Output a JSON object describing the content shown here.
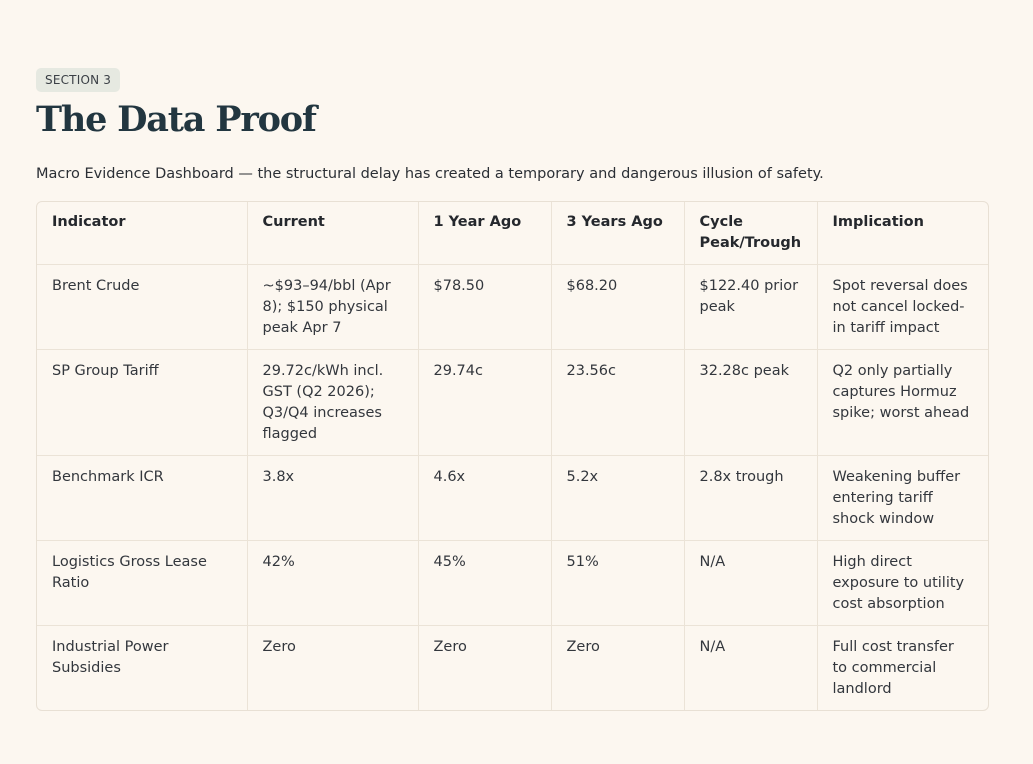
{
  "section": {
    "badge_label": "SECTION 3"
  },
  "header": {
    "title": "The Data Proof",
    "subtitle": "Macro Evidence Dashboard — the structural delay has created a temporary and dangerous illusion of safety."
  },
  "table": {
    "columns": [
      "Indicator",
      "Current",
      "1 Year Ago",
      "3 Years Ago",
      "Cycle Peak/Trough",
      "Implication"
    ],
    "rows": [
      [
        "Brent Crude",
        "~$93–94/bbl (Apr 8); $150 physical peak Apr 7",
        "$78.50",
        "$68.20",
        "$122.40 prior peak",
        "Spot reversal does not cancel locked-in tariff impact"
      ],
      [
        "SP Group Tariff",
        "29.72c/kWh incl. GST (Q2 2026); Q3/Q4 increases flagged",
        "29.74c",
        "23.56c",
        "32.28c peak",
        "Q2 only partially captures Hormuz spike; worst ahead"
      ],
      [
        "Benchmark ICR",
        "3.8x",
        "4.6x",
        "5.2x",
        "2.8x trough",
        "Weakening buffer entering tariff shock window"
      ],
      [
        "Logistics Gross Lease Ratio",
        "42%",
        "45%",
        "51%",
        "N/A",
        "High direct exposure to utility cost absorption"
      ],
      [
        "Industrial Power Subsidies",
        "Zero",
        "Zero",
        "Zero",
        "N/A",
        "Full cost transfer to commercial landlord"
      ]
    ]
  }
}
